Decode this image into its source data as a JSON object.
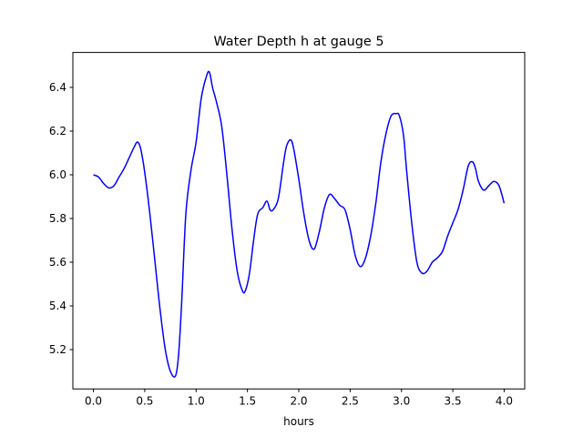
{
  "chart_data": {
    "type": "line",
    "title": "Water Depth h at gauge 5",
    "xlabel": "hours",
    "ylabel": "",
    "xlim": [
      -0.2,
      4.2
    ],
    "ylim": [
      5.02,
      6.56
    ],
    "xticks": [
      0.0,
      0.5,
      1.0,
      1.5,
      2.0,
      2.5,
      3.0,
      3.5,
      4.0
    ],
    "xtick_labels": [
      "0.0",
      "0.5",
      "1.0",
      "1.5",
      "2.0",
      "2.5",
      "3.0",
      "3.5",
      "4.0"
    ],
    "yticks": [
      5.2,
      5.4,
      5.6,
      5.8,
      6.0,
      6.2,
      6.4
    ],
    "ytick_labels": [
      "5.2",
      "5.4",
      "5.6",
      "5.8",
      "6.0",
      "6.2",
      "6.4"
    ],
    "grid": false,
    "series": [
      {
        "color": "#0000ff",
        "x": [
          0.0,
          0.05,
          0.1,
          0.15,
          0.2,
          0.25,
          0.3,
          0.35,
          0.4,
          0.43,
          0.46,
          0.5,
          0.55,
          0.6,
          0.65,
          0.7,
          0.75,
          0.8,
          0.83,
          0.86,
          0.9,
          0.95,
          1.0,
          1.05,
          1.1,
          1.13,
          1.16,
          1.2,
          1.25,
          1.3,
          1.35,
          1.4,
          1.45,
          1.48,
          1.52,
          1.56,
          1.6,
          1.65,
          1.69,
          1.72,
          1.75,
          1.8,
          1.85,
          1.88,
          1.92,
          1.95,
          2.0,
          2.05,
          2.1,
          2.15,
          2.2,
          2.25,
          2.3,
          2.35,
          2.4,
          2.45,
          2.5,
          2.55,
          2.6,
          2.65,
          2.7,
          2.75,
          2.8,
          2.85,
          2.9,
          2.95,
          2.98,
          3.02,
          3.05,
          3.1,
          3.15,
          3.2,
          3.25,
          3.3,
          3.35,
          3.4,
          3.45,
          3.5,
          3.55,
          3.6,
          3.65,
          3.69,
          3.72,
          3.75,
          3.8,
          3.85,
          3.9,
          3.95,
          4.0
        ],
        "y": [
          6.0,
          5.99,
          5.96,
          5.94,
          5.95,
          5.99,
          6.03,
          6.08,
          6.13,
          6.15,
          6.12,
          6.01,
          5.82,
          5.6,
          5.38,
          5.2,
          5.1,
          5.08,
          5.18,
          5.42,
          5.82,
          6.02,
          6.15,
          6.35,
          6.45,
          6.47,
          6.4,
          6.33,
          6.22,
          6.0,
          5.75,
          5.56,
          5.47,
          5.47,
          5.55,
          5.7,
          5.82,
          5.85,
          5.88,
          5.84,
          5.84,
          5.89,
          6.05,
          6.13,
          6.16,
          6.12,
          5.98,
          5.82,
          5.7,
          5.66,
          5.74,
          5.85,
          5.91,
          5.89,
          5.86,
          5.84,
          5.75,
          5.63,
          5.58,
          5.62,
          5.72,
          5.87,
          6.06,
          6.19,
          6.27,
          6.28,
          6.27,
          6.18,
          6.02,
          5.78,
          5.6,
          5.55,
          5.56,
          5.6,
          5.62,
          5.65,
          5.72,
          5.78,
          5.84,
          5.93,
          6.04,
          6.06,
          6.03,
          5.97,
          5.93,
          5.95,
          5.97,
          5.95,
          5.87
        ]
      }
    ]
  }
}
